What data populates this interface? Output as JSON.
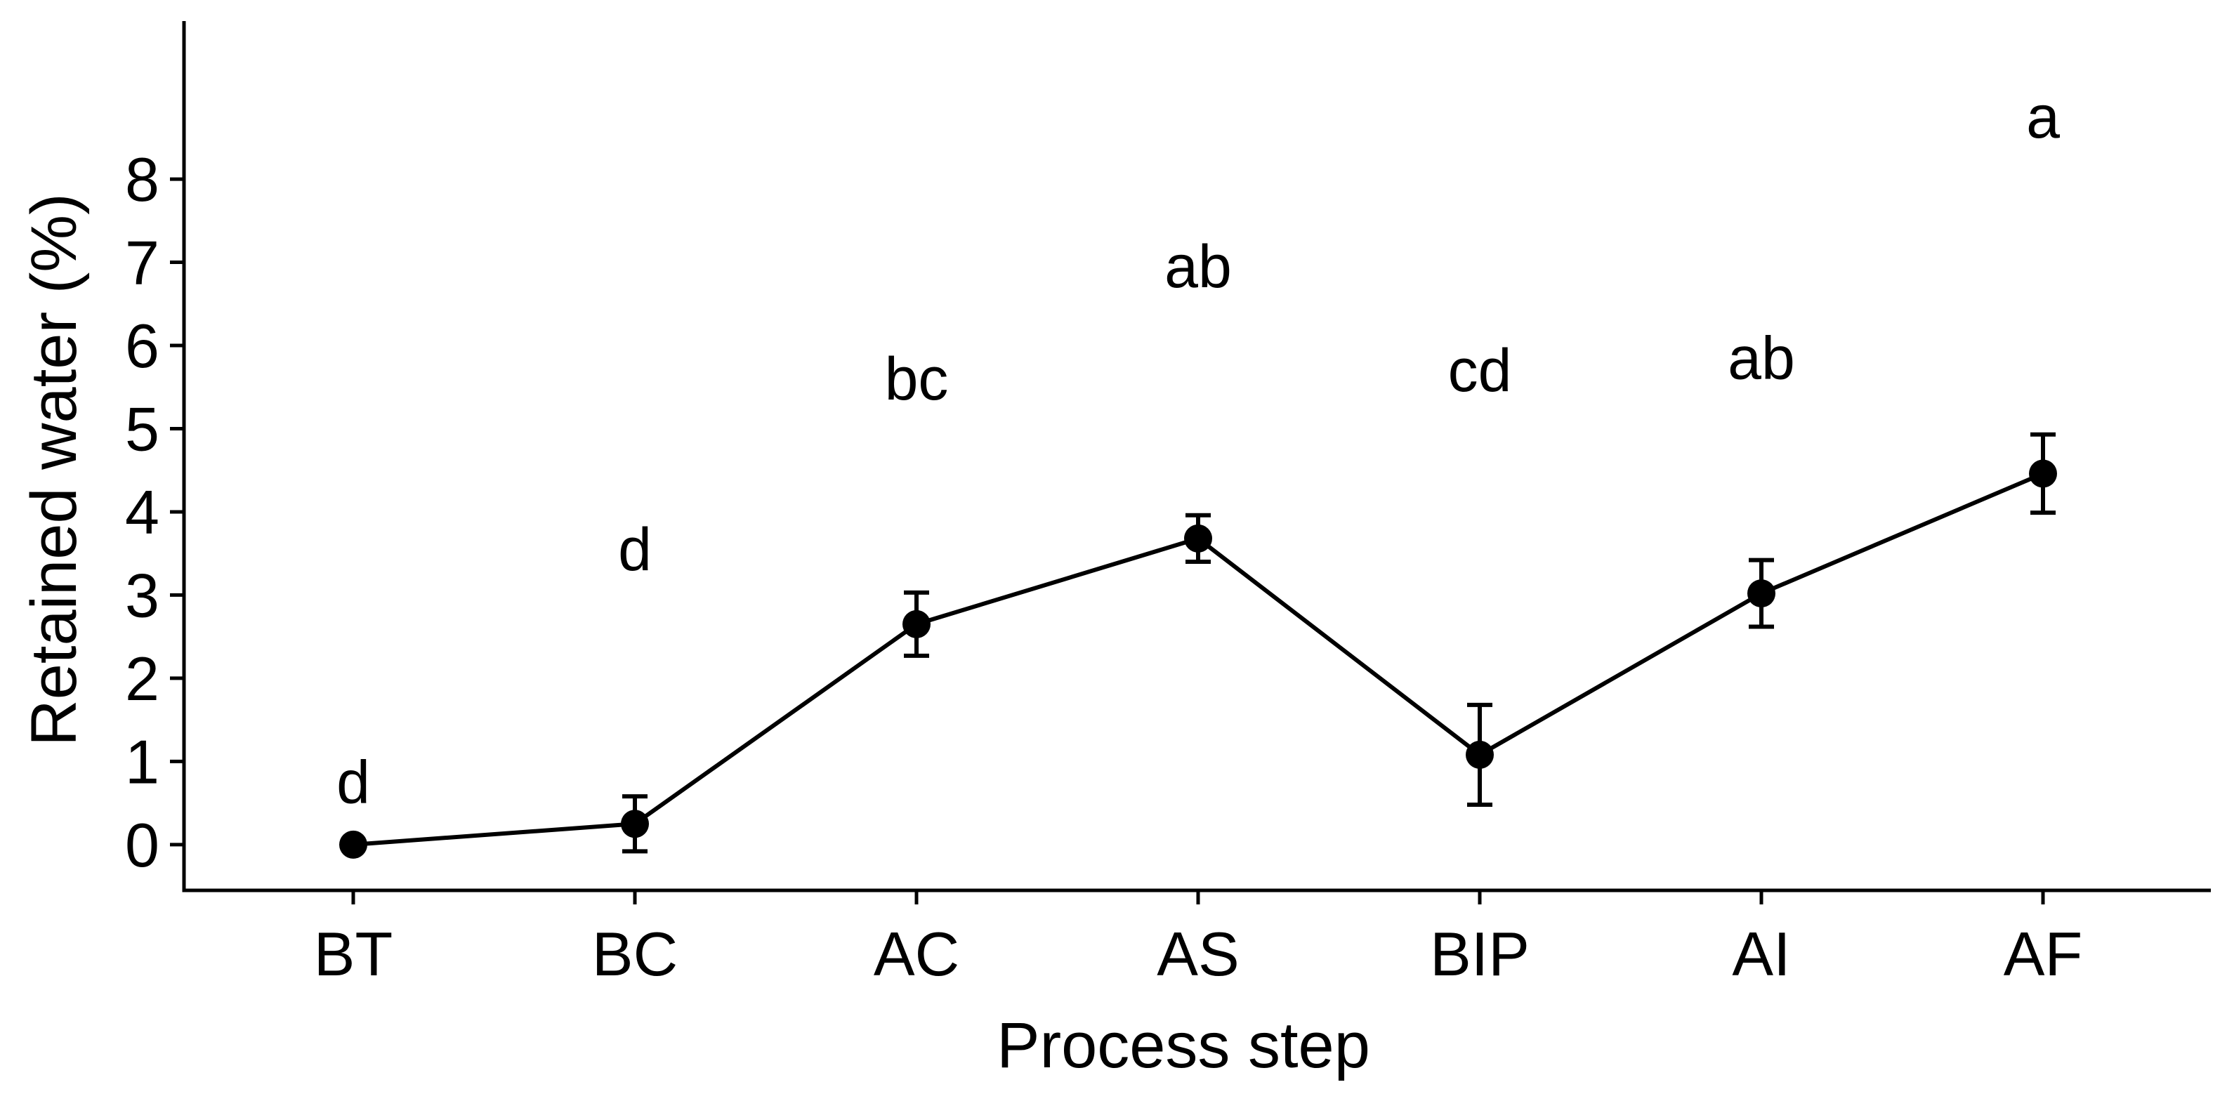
{
  "chart_data": {
    "type": "line",
    "xlabel": "Process step",
    "ylabel": "Retained water (%)",
    "categories": [
      "BT",
      "BC",
      "AC",
      "AS",
      "BIP",
      "AI",
      "AF"
    ],
    "series": [
      {
        "values": [
          0.0,
          0.25,
          2.65,
          3.68,
          1.08,
          3.02,
          4.46
        ],
        "error": [
          0.0,
          0.33,
          0.38,
          0.28,
          0.6,
          0.4,
          0.47
        ]
      }
    ],
    "annotations": [
      {
        "category": "BT",
        "label": "d",
        "y": 0.5
      },
      {
        "category": "BC",
        "label": "d",
        "y": 3.3
      },
      {
        "category": "AC",
        "label": "bc",
        "y": 5.35
      },
      {
        "category": "AS",
        "label": "ab",
        "y": 6.7
      },
      {
        "category": "BIP",
        "label": "cd",
        "y": 5.45
      },
      {
        "category": "AI",
        "label": "ab",
        "y": 5.6
      },
      {
        "category": "AF",
        "label": "a",
        "y": 8.5
      }
    ],
    "yticks": [
      0,
      1,
      2,
      3,
      4,
      5,
      6,
      7,
      8
    ],
    "ylim": [
      -0.55,
      9.9
    ],
    "grid": false,
    "legend": "none",
    "colors": {
      "line": "#000000",
      "points": "#000000",
      "text": "#000000"
    }
  }
}
